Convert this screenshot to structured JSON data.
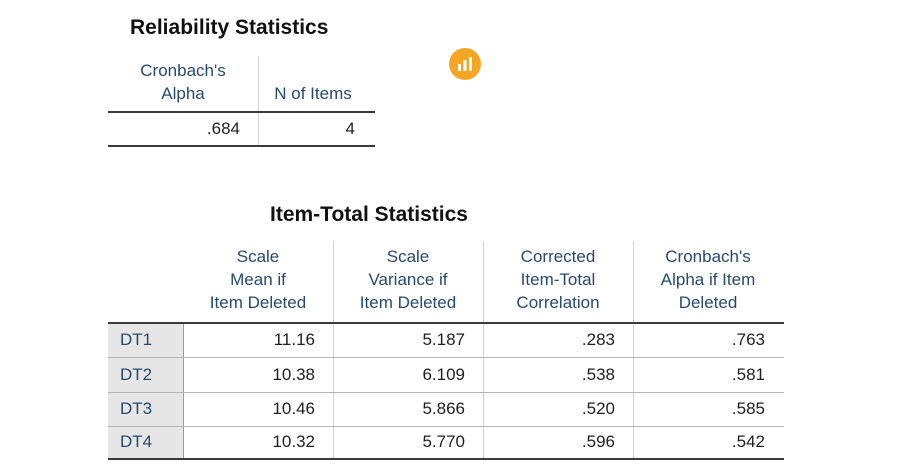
{
  "reliability": {
    "title": "Reliability Statistics",
    "headers": [
      "Cronbach's\nAlpha",
      "N of Items"
    ],
    "values": [
      ".684",
      "4"
    ]
  },
  "item_total": {
    "title": "Item-Total Statistics",
    "headers": [
      "Scale\nMean if\nItem Deleted",
      "Scale\nVariance if\nItem Deleted",
      "Corrected\nItem-Total\nCorrelation",
      "Cronbach's\nAlpha if Item\nDeleted"
    ],
    "rows": [
      {
        "label": "DT1",
        "values": [
          "11.16",
          "5.187",
          ".283",
          ".763"
        ]
      },
      {
        "label": "DT2",
        "values": [
          "10.38",
          "6.109",
          ".538",
          ".581"
        ]
      },
      {
        "label": "DT3",
        "values": [
          "10.46",
          "5.866",
          ".520",
          ".585"
        ]
      },
      {
        "label": "DT4",
        "values": [
          "10.32",
          "5.770",
          ".596",
          ".542"
        ]
      }
    ]
  },
  "icons": {
    "badge": "chart-badge-icon",
    "badge_color": "#f5a623"
  }
}
